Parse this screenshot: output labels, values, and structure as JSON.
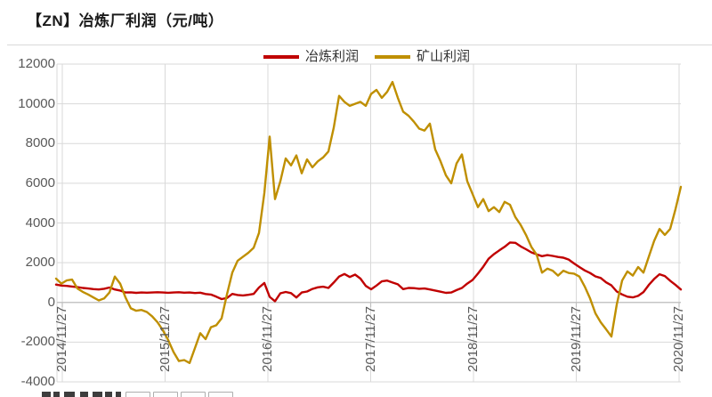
{
  "title": "【ZN】冶炼厂利润（元/吨）",
  "legend": [
    {
      "label": "冶炼利润",
      "color": "#C00000"
    },
    {
      "label": "矿山利润",
      "color": "#BF8F00"
    }
  ],
  "chart_data": {
    "type": "line",
    "title": "【ZN】冶炼厂利润（元/吨）",
    "xlabel": "",
    "ylabel": "元/吨",
    "ylim": [
      -4000,
      12000
    ],
    "y_ticks": [
      12000,
      10000,
      8000,
      6000,
      4000,
      2000,
      0,
      -2000,
      -4000
    ],
    "x_tick_labels": [
      "2014/11/27",
      "2015/11/27",
      "2016/11/27",
      "2017/11/27",
      "2018/11/27",
      "2019/11/27",
      "2020/11/27"
    ],
    "x_label_rotation": -90,
    "x_start": "2014/11/27",
    "x_end": "2020/12/04",
    "grid": true,
    "legend_position": "top",
    "series": [
      {
        "name": "冶炼利润",
        "color": "#C00000",
        "values": [
          900,
          850,
          830,
          800,
          770,
          730,
          700,
          670,
          650,
          690,
          750,
          650,
          600,
          500,
          510,
          480,
          500,
          490,
          500,
          515,
          500,
          485,
          500,
          515,
          490,
          500,
          475,
          490,
          425,
          395,
          290,
          170,
          220,
          430,
          375,
          350,
          385,
          430,
          750,
          980,
          280,
          60,
          460,
          525,
          470,
          250,
          500,
          550,
          680,
          760,
          790,
          730,
          1000,
          1300,
          1430,
          1280,
          1400,
          1200,
          830,
          660,
          850,
          1060,
          1100,
          1000,
          910,
          670,
          730,
          720,
          690,
          700,
          650,
          600,
          540,
          480,
          500,
          620,
          730,
          950,
          1130,
          1450,
          1800,
          2200,
          2430,
          2620,
          2800,
          3020,
          3000,
          2820,
          2680,
          2520,
          2420,
          2330,
          2380,
          2340,
          2290,
          2250,
          2160,
          1960,
          1780,
          1610,
          1480,
          1310,
          1230,
          1010,
          860,
          550,
          400,
          290,
          255,
          330,
          520,
          880,
          1180,
          1420,
          1330,
          1090,
          880,
          650
        ]
      },
      {
        "name": "矿山利润",
        "color": "#BF8F00",
        "values": [
          1200,
          950,
          1110,
          1150,
          700,
          530,
          400,
          250,
          100,
          200,
          500,
          1300,
          950,
          250,
          -300,
          -420,
          -380,
          -480,
          -700,
          -1000,
          -1400,
          -1900,
          -2500,
          -2950,
          -2900,
          -3050,
          -2300,
          -1550,
          -1850,
          -1250,
          -1150,
          -800,
          400,
          1500,
          2100,
          2300,
          2500,
          2750,
          3500,
          5500,
          8350,
          5200,
          6100,
          7250,
          6900,
          7400,
          6500,
          7200,
          6800,
          7100,
          7300,
          7600,
          8800,
          10400,
          10100,
          9900,
          10000,
          10100,
          9900,
          10500,
          10700,
          10300,
          10600,
          11100,
          10300,
          9600,
          9400,
          9100,
          8750,
          8650,
          9000,
          7700,
          7100,
          6400,
          6000,
          7000,
          7450,
          6100,
          5450,
          4800,
          5200,
          4600,
          4800,
          4550,
          5060,
          4920,
          4300,
          3900,
          3400,
          2800,
          2400,
          1500,
          1700,
          1600,
          1350,
          1600,
          1480,
          1450,
          1300,
          800,
          200,
          -550,
          -1000,
          -1350,
          -1720,
          -100,
          1100,
          1560,
          1350,
          1780,
          1500,
          2300,
          3100,
          3700,
          3400,
          3700,
          4700,
          5820
        ]
      }
    ]
  }
}
